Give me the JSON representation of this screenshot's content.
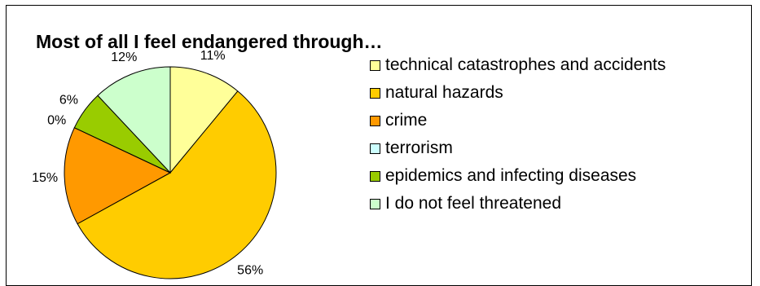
{
  "chart_data": {
    "type": "pie",
    "title": "Most of all I feel endangered through…",
    "slices": [
      {
        "label": "technical catastrophes and accidents",
        "value": 11,
        "display": "11%",
        "color": "#ffff99"
      },
      {
        "label": "natural hazards",
        "value": 56,
        "display": "56%",
        "color": "#ffcc00"
      },
      {
        "label": "crime",
        "value": 15,
        "display": "15%",
        "color": "#ff9900"
      },
      {
        "label": "terrorism",
        "value": 0,
        "display": "0%",
        "color": "#ccffff"
      },
      {
        "label": "epidemics and infecting diseases",
        "value": 6,
        "display": "6%",
        "color": "#99cc00"
      },
      {
        "label": "I do not feel threatened",
        "value": 12,
        "display": "12%",
        "color": "#ccffcc"
      }
    ],
    "legend_position": "right"
  }
}
